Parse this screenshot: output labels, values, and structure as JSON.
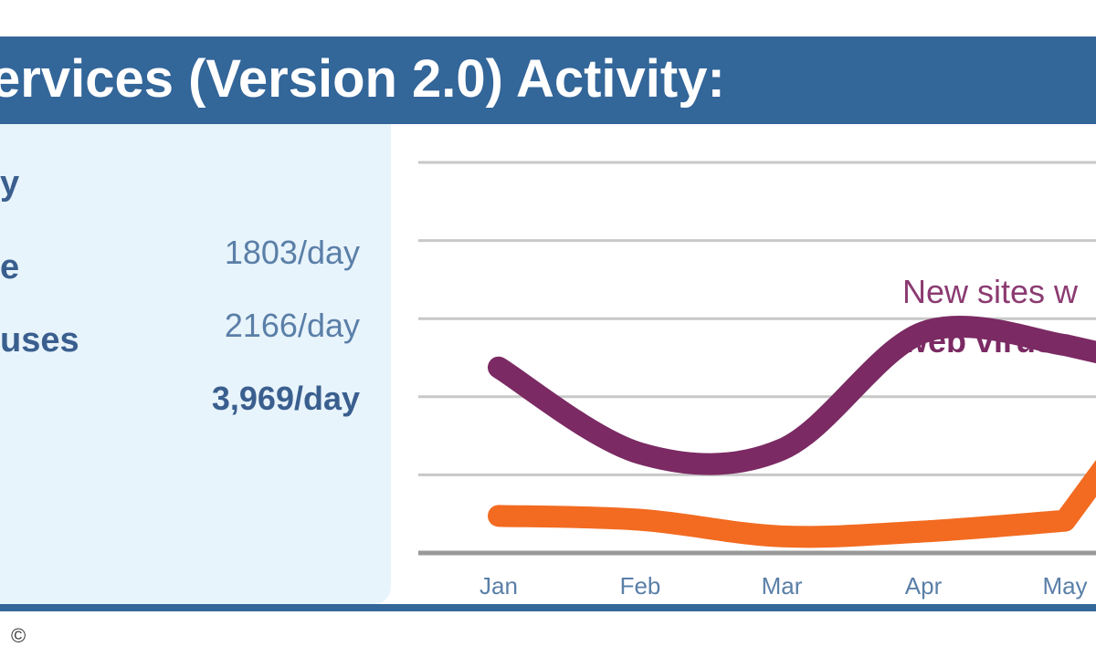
{
  "header": {
    "title": "ervices (Version 2.0) Activity:"
  },
  "stats": [
    {
      "label": "y",
      "value": ""
    },
    {
      "label": "e",
      "value": "1803/day"
    },
    {
      "label": "uses",
      "value": "2166/day"
    },
    {
      "label": "",
      "value": "3,969/day"
    }
  ],
  "footer": {
    "copyright": "©"
  },
  "chart_data": {
    "type": "line",
    "categories": [
      "Jan",
      "Feb",
      "Mar",
      "Apr",
      "May"
    ],
    "series": [
      {
        "name": "New sites with web viruses",
        "color": "#7b2a63",
        "values": [
          1900,
          1020,
          1060,
          2260,
          2130
        ]
      },
      {
        "name": "",
        "color": "#f26b21",
        "values": [
          380,
          340,
          170,
          220,
          330
        ]
      }
    ],
    "annotation": {
      "line1": "New sites w",
      "line2": "web viruse"
    },
    "ylim": [
      0,
      4000
    ],
    "grid": true,
    "xlabel": "",
    "ylabel": ""
  }
}
